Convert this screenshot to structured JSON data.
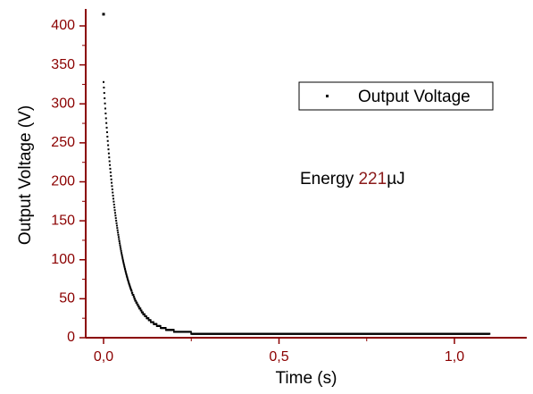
{
  "chart_data": {
    "type": "scatter",
    "xlabel": "Time (s)",
    "ylabel": "Output Voltage (V)",
    "xlim": [
      -0.05,
      1.25
    ],
    "ylim": [
      0,
      420
    ],
    "x_ticks": [
      0.0,
      0.5,
      1.0
    ],
    "x_tick_labels": [
      "0,0",
      "0,5",
      "1,0"
    ],
    "y_ticks": [
      0,
      50,
      100,
      150,
      200,
      250,
      300,
      350,
      400
    ],
    "y_tick_labels": [
      "0",
      "50",
      "100",
      "150",
      "200",
      "250",
      "300",
      "350",
      "400"
    ],
    "grid": false,
    "legend_position": "top-right",
    "series": [
      {
        "name": "Output Voltage",
        "outlier": {
          "x": 0.0,
          "y": 415
        },
        "decay": {
          "v0": 328,
          "tau": 0.045,
          "floor": 5,
          "t_start": 0.0,
          "t_end": 1.1
        }
      }
    ],
    "annotation": {
      "prefix": "Energy ",
      "value": "221",
      "unit": "µJ"
    },
    "colors": {
      "axis": "#8b0000",
      "tick_label": "#8b0000",
      "points": "#000000",
      "annotation_value": "#8b1a1a"
    }
  }
}
